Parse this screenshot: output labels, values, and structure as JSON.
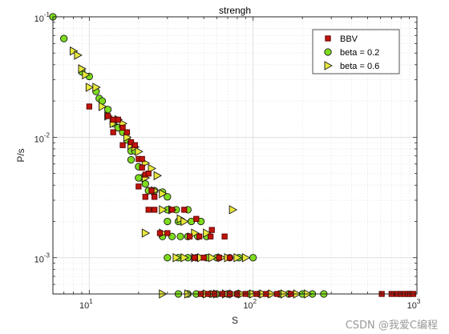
{
  "chart_data": {
    "type": "scatter",
    "title": "strengh",
    "xlabel": "S",
    "ylabel": "P/s",
    "xscale": "log",
    "yscale": "log",
    "xlim": [
      6,
      1000
    ],
    "ylim": [
      0.0005,
      0.1
    ],
    "grid": true,
    "minor_grid": true,
    "legend_position": "top-right",
    "x_ticks": [
      {
        "base": "10",
        "exp": "1",
        "value": 10
      },
      {
        "base": "10",
        "exp": "2",
        "value": 100
      },
      {
        "base": "10",
        "exp": "3",
        "value": 1000
      }
    ],
    "y_ticks": [
      {
        "base": "10",
        "exp": "-1",
        "value": 0.1
      },
      {
        "base": "10",
        "exp": "-2",
        "value": 0.01
      },
      {
        "base": "10",
        "exp": "-3",
        "value": 0.001
      }
    ],
    "series": [
      {
        "name": "BBV",
        "marker": "square",
        "color": "#c0140c",
        "edge": "#5a0000",
        "points": [
          [
            10,
            0.018
          ],
          [
            13,
            0.015
          ],
          [
            14,
            0.014
          ],
          [
            14,
            0.011
          ],
          [
            15,
            0.014
          ],
          [
            16,
            0.012
          ],
          [
            16,
            0.0086
          ],
          [
            17,
            0.011
          ],
          [
            18,
            0.0091
          ],
          [
            19,
            0.0086
          ],
          [
            20,
            0.0066
          ],
          [
            21,
            0.0066
          ],
          [
            21,
            0.0056
          ],
          [
            22,
            0.0049
          ],
          [
            23,
            0.005
          ],
          [
            24,
            0.0036
          ],
          [
            25,
            0.0032
          ],
          [
            20,
            0.0039
          ],
          [
            22,
            0.0032
          ],
          [
            23,
            0.0025
          ],
          [
            25,
            0.0025
          ],
          [
            27,
            0.0016
          ],
          [
            30,
            0.0016
          ],
          [
            32,
            0.0025
          ],
          [
            38,
            0.0025
          ],
          [
            41,
            0.0015
          ],
          [
            45,
            0.0021
          ],
          [
            47,
            0.0015
          ],
          [
            44,
            0.001
          ],
          [
            50,
            0.001
          ],
          [
            62,
            0.001
          ],
          [
            72,
            0.001
          ],
          [
            55,
            0.0015
          ],
          [
            56,
            0.0017
          ],
          [
            67,
            0.0015
          ],
          [
            48,
            0.0005
          ],
          [
            53,
            0.0005
          ],
          [
            58,
            0.0005
          ],
          [
            65,
            0.0005
          ],
          [
            72,
            0.0005
          ],
          [
            80,
            0.0005
          ],
          [
            90,
            0.0005
          ],
          [
            105,
            0.0005
          ],
          [
            120,
            0.0005
          ],
          [
            140,
            0.0005
          ],
          [
            170,
            0.0005
          ],
          [
            610,
            0.0005
          ],
          [
            700,
            0.0005
          ],
          [
            760,
            0.0005
          ],
          [
            800,
            0.0005
          ],
          [
            840,
            0.0005
          ],
          [
            880,
            0.0005
          ],
          [
            910,
            0.0005
          ],
          [
            950,
            0.0005
          ]
        ]
      },
      {
        "name": "beta = 0.2",
        "marker": "circle",
        "color": "#7ddc1e",
        "edge": "#1a1a1a",
        "points": [
          [
            6,
            0.1
          ],
          [
            7,
            0.066
          ],
          [
            9,
            0.035
          ],
          [
            10,
            0.032
          ],
          [
            11,
            0.024
          ],
          [
            11.5,
            0.021
          ],
          [
            12,
            0.02
          ],
          [
            13,
            0.017
          ],
          [
            14,
            0.013
          ],
          [
            15,
            0.012
          ],
          [
            16,
            0.011
          ],
          [
            17,
            0.0095
          ],
          [
            18,
            0.0077
          ],
          [
            18,
            0.0065
          ],
          [
            19,
            0.0077
          ],
          [
            20,
            0.0057
          ],
          [
            21,
            0.0046
          ],
          [
            22,
            0.0041
          ],
          [
            20,
            0.0046
          ],
          [
            23,
            0.0036
          ],
          [
            25,
            0.0036
          ],
          [
            28,
            0.0035
          ],
          [
            30,
            0.0032
          ],
          [
            30,
            0.0025
          ],
          [
            34,
            0.0025
          ],
          [
            40,
            0.0025
          ],
          [
            30,
            0.002
          ],
          [
            35,
            0.002
          ],
          [
            42,
            0.002
          ],
          [
            48,
            0.002
          ],
          [
            28,
            0.0015
          ],
          [
            32,
            0.0015
          ],
          [
            36,
            0.0015
          ],
          [
            40,
            0.0015
          ],
          [
            46,
            0.0015
          ],
          [
            52,
            0.0015
          ],
          [
            30,
            0.001
          ],
          [
            35,
            0.001
          ],
          [
            40,
            0.001
          ],
          [
            45,
            0.001
          ],
          [
            52,
            0.001
          ],
          [
            60,
            0.001
          ],
          [
            72,
            0.001
          ],
          [
            82,
            0.001
          ],
          [
            100,
            0.001
          ],
          [
            35,
            0.0005
          ],
          [
            40,
            0.0005
          ],
          [
            45,
            0.0005
          ],
          [
            50,
            0.0005
          ],
          [
            55,
            0.0005
          ],
          [
            60,
            0.0005
          ],
          [
            70,
            0.0005
          ],
          [
            80,
            0.0005
          ],
          [
            95,
            0.0005
          ],
          [
            110,
            0.0005
          ],
          [
            125,
            0.0005
          ],
          [
            145,
            0.0005
          ],
          [
            165,
            0.0005
          ],
          [
            200,
            0.0005
          ],
          [
            230,
            0.0005
          ],
          [
            270,
            0.0005
          ]
        ]
      },
      {
        "name": "beta = 0.6",
        "marker": "triangle-right",
        "color": "#e8e83a",
        "edge": "#1a1a1a",
        "points": [
          [
            8,
            0.052
          ],
          [
            8.5,
            0.048
          ],
          [
            9,
            0.037
          ],
          [
            9.5,
            0.033
          ],
          [
            10,
            0.026
          ],
          [
            11,
            0.026
          ],
          [
            12,
            0.018
          ],
          [
            13,
            0.015
          ],
          [
            14,
            0.013
          ],
          [
            15,
            0.014
          ],
          [
            16,
            0.013
          ],
          [
            17,
            0.01
          ],
          [
            18,
            0.0086
          ],
          [
            19,
            0.0083
          ],
          [
            20,
            0.0076
          ],
          [
            22,
            0.0061
          ],
          [
            24,
            0.0055
          ],
          [
            26,
            0.0048
          ],
          [
            22,
            0.0046
          ],
          [
            25,
            0.0036
          ],
          [
            28,
            0.0034
          ],
          [
            28,
            0.0025
          ],
          [
            32,
            0.0025
          ],
          [
            36,
            0.0021
          ],
          [
            22,
            0.0016
          ],
          [
            28,
            0.0016
          ],
          [
            38,
            0.002
          ],
          [
            44,
            0.0016
          ],
          [
            52,
            0.0016
          ],
          [
            75,
            0.0025
          ],
          [
            34,
            0.001
          ],
          [
            38,
            0.001
          ],
          [
            44,
            0.001
          ],
          [
            48,
            0.001
          ],
          [
            56,
            0.001
          ],
          [
            64,
            0.001
          ],
          [
            70,
            0.001
          ],
          [
            80,
            0.001
          ],
          [
            90,
            0.001
          ],
          [
            28,
            0.0005
          ],
          [
            40,
            0.0005
          ],
          [
            52,
            0.0005
          ],
          [
            60,
            0.0005
          ],
          [
            68,
            0.0005
          ],
          [
            75,
            0.0005
          ],
          [
            85,
            0.0005
          ],
          [
            100,
            0.0005
          ],
          [
            115,
            0.0005
          ],
          [
            130,
            0.0005
          ],
          [
            155,
            0.0005
          ],
          [
            185,
            0.0005
          ],
          [
            215,
            0.0005
          ]
        ]
      }
    ]
  },
  "watermark": "CSDN @我爱C编程"
}
